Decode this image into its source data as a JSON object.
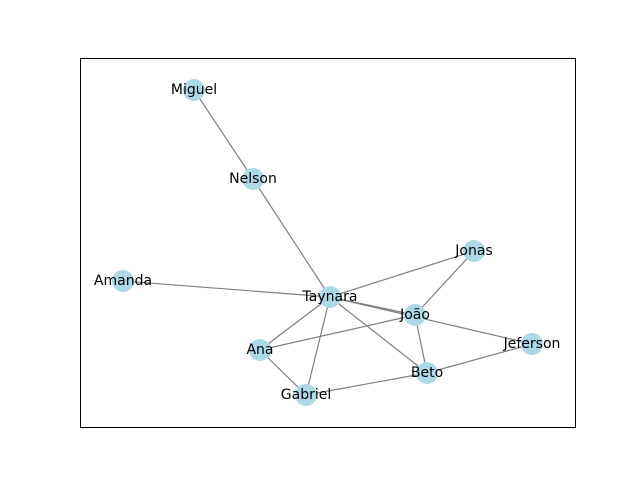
{
  "graph": {
    "colors": {
      "node": "#add8e6",
      "edge": "#808080"
    },
    "nodes": [
      {
        "id": "Miguel",
        "label": "Miguel"
      },
      {
        "id": "Nelson",
        "label": "Nelson"
      },
      {
        "id": "Jonas",
        "label": "Jonas"
      },
      {
        "id": "Amanda",
        "label": "Amanda"
      },
      {
        "id": "Taynara",
        "label": "Taynara"
      },
      {
        "id": "Joao",
        "label": "João"
      },
      {
        "id": "Ana",
        "label": "Ana"
      },
      {
        "id": "Jeferson",
        "label": "Jeferson"
      },
      {
        "id": "Beto",
        "label": "Beto"
      },
      {
        "id": "Gabriel",
        "label": "Gabriel"
      }
    ],
    "edges": [
      [
        "Miguel",
        "Nelson"
      ],
      [
        "Nelson",
        "Taynara"
      ],
      [
        "Amanda",
        "Taynara"
      ],
      [
        "Taynara",
        "Jonas"
      ],
      [
        "Taynara",
        "Joao"
      ],
      [
        "Taynara",
        "Jeferson"
      ],
      [
        "Taynara",
        "Beto"
      ],
      [
        "Taynara",
        "Ana"
      ],
      [
        "Taynara",
        "Gabriel"
      ],
      [
        "Jonas",
        "Joao"
      ],
      [
        "Joao",
        "Ana"
      ],
      [
        "Joao",
        "Beto"
      ],
      [
        "Ana",
        "Gabriel"
      ],
      [
        "Gabriel",
        "Beto"
      ],
      [
        "Beto",
        "Jeferson"
      ]
    ]
  }
}
